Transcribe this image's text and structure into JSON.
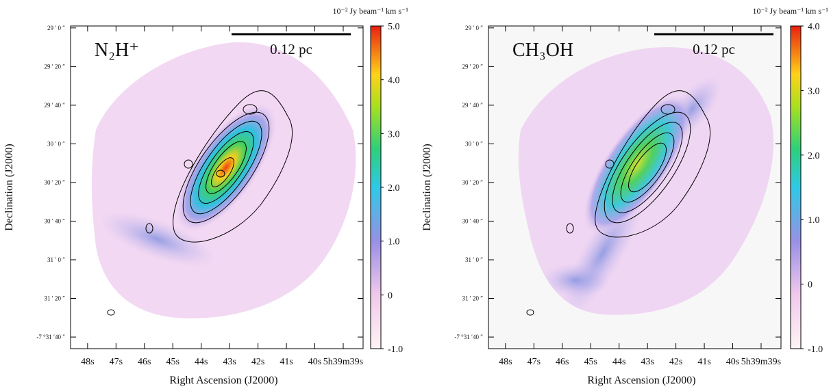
{
  "chart_data": [
    {
      "type": "image",
      "title": "N₂H⁺",
      "scale_bar_label": "0.12 pc",
      "xlabel": "Right Ascension (J2000)",
      "ylabel": "Declination (J2000)",
      "colorbar_label": "10⁻² Jy beam⁻¹ km s⁻¹",
      "xlim": [
        48.6,
        38.3
      ],
      "xticks": [
        {
          "value": 48,
          "label": "48s"
        },
        {
          "value": 47,
          "label": "47s"
        },
        {
          "value": 46,
          "label": "46s"
        },
        {
          "value": 45,
          "label": "45s"
        },
        {
          "value": 44,
          "label": "44s"
        },
        {
          "value": 43,
          "label": "43s"
        },
        {
          "value": 42,
          "label": "42s"
        },
        {
          "value": 41,
          "label": "41s"
        },
        {
          "value": 40,
          "label": "40s"
        },
        {
          "value": 39,
          "label": "5h39m39s"
        }
      ],
      "ylim": [
        1906,
        1739
      ],
      "yticks": [
        {
          "value": 1740,
          "label": "29 ′ 0 ″"
        },
        {
          "value": 1760,
          "label": "29 ′ 20 ″"
        },
        {
          "value": 1780,
          "label": "29 ′ 40 ″"
        },
        {
          "value": 1800,
          "label": "30 ′ 0 ″"
        },
        {
          "value": 1820,
          "label": "30 ′ 20 ″"
        },
        {
          "value": 1840,
          "label": "30 ′ 40 ″"
        },
        {
          "value": 1860,
          "label": "31 ′ 0 ″"
        },
        {
          "value": 1880,
          "label": "31 ′ 20 ″"
        },
        {
          "value": 1900,
          "label": "-7 °31 ′40 ″"
        }
      ],
      "clim": [
        -1.0,
        5.0
      ],
      "cticks": [
        {
          "value": -1.0,
          "label": "-1.0"
        },
        0,
        {
          "value": 1.0,
          "label": "1.0"
        },
        {
          "value": 2.0,
          "label": "2.0"
        },
        {
          "value": 3.0,
          "label": "3.0"
        },
        {
          "value": 4.0,
          "label": "4.0"
        },
        {
          "value": 5.0,
          "label": "5.0"
        }
      ]
    },
    {
      "type": "image",
      "title": "CH₃OH",
      "scale_bar_label": "0.12 pc",
      "xlabel": "Right Ascension (J2000)",
      "ylabel": "Declination (J2000)",
      "colorbar_label": "10⁻² Jy beam⁻¹ km s⁻¹",
      "xlim": [
        48.6,
        38.3
      ],
      "xticks": [
        {
          "value": 48,
          "label": "48s"
        },
        {
          "value": 47,
          "label": "47s"
        },
        {
          "value": 46,
          "label": "46s"
        },
        {
          "value": 45,
          "label": "45s"
        },
        {
          "value": 44,
          "label": "44s"
        },
        {
          "value": 43,
          "label": "43s"
        },
        {
          "value": 42,
          "label": "42s"
        },
        {
          "value": 41,
          "label": "41s"
        },
        {
          "value": 40,
          "label": "40s"
        },
        {
          "value": 39,
          "label": "5h39m39s"
        }
      ],
      "ylim": [
        1906,
        1739
      ],
      "yticks": [
        {
          "value": 1740,
          "label": "29 ′ 0 ″"
        },
        {
          "value": 1760,
          "label": "29 ′ 20 ″"
        },
        {
          "value": 1780,
          "label": "29 ′ 40 ″"
        },
        {
          "value": 1800,
          "label": "30 ′ 0 ″"
        },
        {
          "value": 1820,
          "label": "30 ′ 20 ″"
        },
        {
          "value": 1840,
          "label": "30 ′ 40 ″"
        },
        {
          "value": 1860,
          "label": "31 ′ 0 ″"
        },
        {
          "value": 1880,
          "label": "31 ′ 20 ″"
        },
        {
          "value": 1900,
          "label": "-7 °31 ′40 ″"
        }
      ],
      "clim": [
        -1.0,
        4.0
      ],
      "cticks": [
        {
          "value": -1.0,
          "label": "-1.0"
        },
        0,
        {
          "value": 1.0,
          "label": "1.0"
        },
        {
          "value": 2.0,
          "label": "2.0"
        },
        {
          "value": 3.0,
          "label": "3.0"
        },
        {
          "value": 4.0,
          "label": "4.0"
        }
      ]
    }
  ]
}
